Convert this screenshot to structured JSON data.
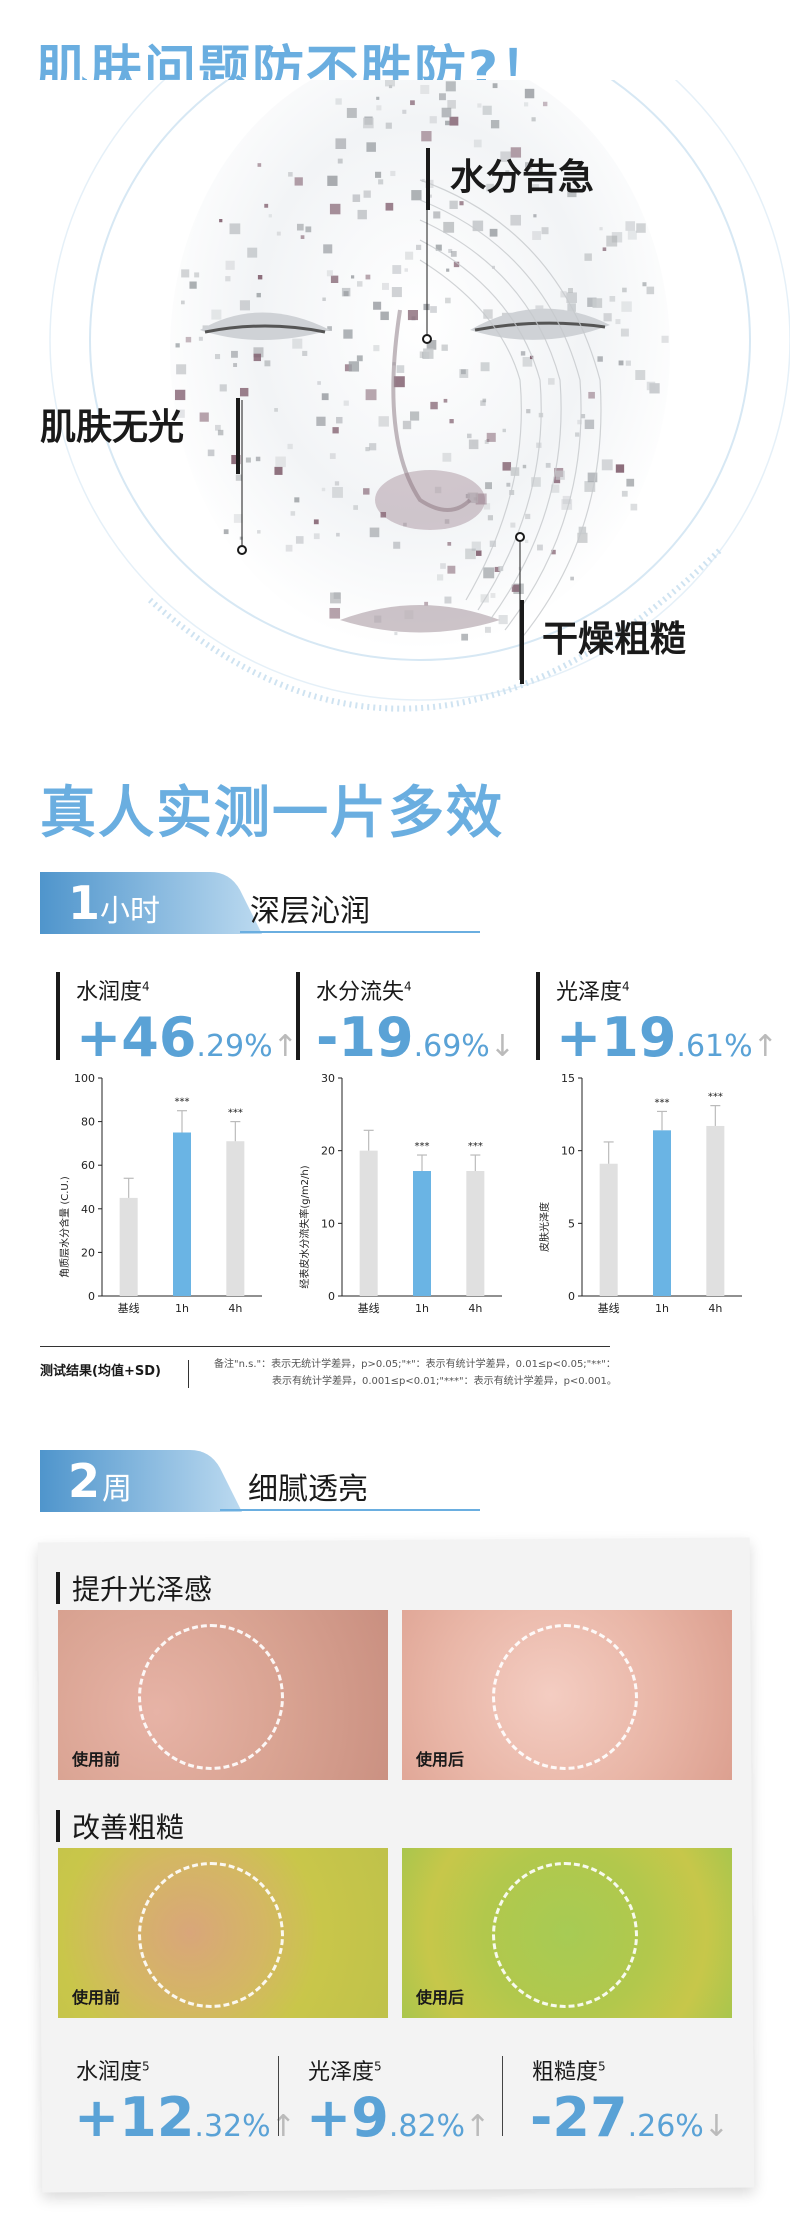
{
  "hero": {
    "title": "肌肤问题防不胜防?！",
    "callouts": {
      "water": "水分告急",
      "dull": "肌肤无光",
      "rough": "干燥粗糙"
    }
  },
  "test": {
    "title": "真人实测一片多效"
  },
  "section1": {
    "badge_num": "1",
    "badge_unit": "小时",
    "badge_sub": "深层沁润",
    "metrics": [
      {
        "name": "水润度",
        "sup": "4",
        "sign": "+",
        "big": "46",
        "small": ".29%",
        "arrow": "↑"
      },
      {
        "name": "水分流失",
        "sup": "4",
        "sign": "-",
        "big": "19",
        "small": ".69%",
        "arrow": "↓"
      },
      {
        "name": "光泽度",
        "sup": "4",
        "sign": "+",
        "big": "19",
        "small": ".61%",
        "arrow": "↑"
      }
    ],
    "significance": "***",
    "legend_label": "测试结果(均值+SD)",
    "note_line1": "备注\"n.s.\"：表示无统计学差异，p>0.05;\"*\"：表示有统计学差异，0.01≤p<0.05;\"**\"：",
    "note_line2": "表示有统计学差异，0.001≤p<0.01;\"***\"：表示有统计学差异，p<0.001。"
  },
  "chart_data": [
    {
      "type": "bar",
      "categories": [
        "基线",
        "1h",
        "4h"
      ],
      "values": [
        45,
        75,
        71
      ],
      "errors": [
        9,
        10,
        9
      ],
      "ylabel": "角质层水分含量 (C.U.)",
      "ylim": [
        0,
        100
      ],
      "yticks": [
        0,
        20,
        40,
        60,
        80,
        100
      ],
      "colors": [
        "#e0e0e0",
        "#6ab4e4",
        "#e0e0e0"
      ]
    },
    {
      "type": "bar",
      "categories": [
        "基线",
        "1h",
        "4h"
      ],
      "values": [
        20,
        17.2,
        17.2
      ],
      "errors": [
        2.8,
        2.2,
        2.2
      ],
      "ylabel": "经表皮水分流失率(g/m2/h)",
      "ylim": [
        0,
        30
      ],
      "yticks": [
        0,
        10,
        20,
        30
      ],
      "colors": [
        "#e0e0e0",
        "#6ab4e4",
        "#e0e0e0"
      ]
    },
    {
      "type": "bar",
      "categories": [
        "基线",
        "1h",
        "4h"
      ],
      "values": [
        9.1,
        11.4,
        11.7
      ],
      "errors": [
        1.5,
        1.3,
        1.4
      ],
      "ylabel": "皮肤光泽度",
      "ylim": [
        0,
        15
      ],
      "yticks": [
        0,
        5,
        10,
        15
      ],
      "colors": [
        "#e0e0e0",
        "#6ab4e4",
        "#e0e0e0"
      ]
    }
  ],
  "section2": {
    "badge_num": "2",
    "badge_unit": "周",
    "badge_sub": "细腻透亮",
    "gloss_title": "提升光泽感",
    "rough_title": "改善粗糙",
    "before": "使用前",
    "after": "使用后",
    "metrics": [
      {
        "name": "水润度",
        "sup": "5",
        "sign": "+",
        "big": "12",
        "small": ".32%",
        "arrow": "↑"
      },
      {
        "name": "光泽度",
        "sup": "5",
        "sign": "+",
        "big": "9",
        "small": ".82%",
        "arrow": "↑"
      },
      {
        "name": "粗糙度",
        "sup": "5",
        "sign": "-",
        "big": "27",
        "small": ".26%",
        "arrow": "↓"
      }
    ]
  },
  "colors": {
    "accent": "#5aa2d6",
    "title": "#6aaee0",
    "bar_highlight": "#6ab4e4",
    "bar_base": "#e0e0e0"
  }
}
